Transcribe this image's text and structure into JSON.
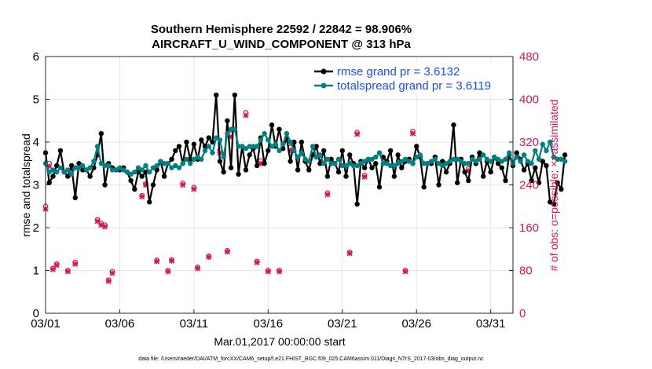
{
  "chart_data": {
    "type": "line",
    "title_line1": "Southern Hemisphere 22592 / 22842 = 98.906%",
    "title_line2": "AIRCRAFT_U_WIND_COMPONENT @ 313 hPa",
    "xlabel": "Mar.01,2017 00:00:00 start",
    "ylabel_left": "rmse and totalspread",
    "ylabel_right": "# of obs: o=possible; ×=assimilated",
    "footer": "data file: /Users/raeder/DAI/ATM_forcXX/CAM6_setup/f.e21.FHIST_BGC.f09_025.CAM6assim.011/Diags_NTrS_2017-03/obs_diag_output.nc",
    "xlim": [
      0,
      31.5
    ],
    "ylim_left": [
      0,
      6
    ],
    "ylim_right": [
      0,
      480
    ],
    "x_ticks": [
      {
        "x": 0,
        "label": "03/01"
      },
      {
        "x": 5,
        "label": "03/06"
      },
      {
        "x": 10,
        "label": "03/11"
      },
      {
        "x": 15,
        "label": "03/16"
      },
      {
        "x": 20,
        "label": "03/21"
      },
      {
        "x": 25,
        "label": "03/26"
      },
      {
        "x": 30,
        "label": "03/31"
      }
    ],
    "y_ticks_left": [
      "0",
      "1",
      "2",
      "3",
      "4",
      "5",
      "6"
    ],
    "y_ticks_right": [
      "0",
      "80",
      "160",
      "240",
      "320",
      "400",
      "480"
    ],
    "x_step": 0.25,
    "colors": {
      "rmse": "#000000",
      "totalspread": "#008080",
      "obs": "#d0185a",
      "legend_text": "#1f4fe0"
    },
    "series": [
      {
        "name": "rmse grand pr = 3.6132",
        "key": "rmse",
        "values": [
          3.75,
          3.05,
          3.2,
          3.45,
          3.8,
          3.3,
          3.2,
          3.45,
          2.7,
          3.5,
          3.35,
          3.35,
          3.2,
          3.4,
          3.7,
          4.2,
          3.0,
          3.5,
          3.4,
          3.35,
          3.35,
          3.4,
          3.3,
          3.1,
          2.9,
          3.3,
          3.2,
          3.3,
          2.6,
          3.0,
          3.35,
          3.55,
          3.2,
          3.5,
          3.6,
          3.8,
          3.9,
          3.5,
          4.0,
          3.6,
          3.95,
          3.6,
          4.05,
          3.9,
          4.1,
          4.0,
          5.1,
          3.55,
          3.3,
          4.5,
          3.4,
          5.1,
          3.25,
          3.9,
          3.35,
          3.7,
          3.85,
          3.45,
          4.1,
          3.5,
          3.8,
          4.4,
          3.9,
          4.3,
          3.85,
          4.1,
          3.55,
          4.0,
          3.35,
          4.0,
          3.55,
          3.35,
          3.7,
          3.9,
          3.5,
          3.8,
          3.2,
          3.6,
          3.5,
          3.3,
          3.8,
          3.2,
          3.7,
          3.5,
          2.55,
          3.55,
          3.4,
          3.6,
          3.4,
          3.5,
          2.95,
          3.65,
          3.55,
          3.8,
          3.2,
          3.7,
          3.4,
          3.55,
          3.6,
          3.5,
          3.9,
          3.65,
          2.95,
          3.5,
          3.5,
          3.65,
          3.0,
          3.55,
          3.3,
          3.5,
          4.4,
          3.05,
          3.6,
          3.3,
          3.1,
          3.65,
          3.5,
          3.75,
          3.2,
          3.55,
          3.3,
          3.65,
          3.5,
          3.4,
          3.1,
          3.7,
          3.45,
          3.75,
          3.6,
          3.35,
          3.5,
          3.1,
          3.4,
          3.05,
          3.55,
          3.45,
          2.6,
          2.55,
          3.05,
          2.9,
          3.7
        ]
      },
      {
        "name": "totalspread grand pr = 3.6119",
        "key": "totalspread",
        "values": [
          3.5,
          3.3,
          3.35,
          3.3,
          3.4,
          3.3,
          3.35,
          3.25,
          3.4,
          3.4,
          3.45,
          3.35,
          3.4,
          3.55,
          3.9,
          3.5,
          3.45,
          3.45,
          3.35,
          3.35,
          3.4,
          3.35,
          3.3,
          3.25,
          3.3,
          3.4,
          3.35,
          3.45,
          3.3,
          3.4,
          3.45,
          3.55,
          3.5,
          3.5,
          3.4,
          3.45,
          3.4,
          3.5,
          3.6,
          3.5,
          3.6,
          3.65,
          3.6,
          3.8,
          3.9,
          3.75,
          4.1,
          4.05,
          3.65,
          4.2,
          4.3,
          4.3,
          3.9,
          3.9,
          3.85,
          3.9,
          3.9,
          3.9,
          4.05,
          4.2,
          4.05,
          3.9,
          3.95,
          3.8,
          3.95,
          4.2,
          4.0,
          3.8,
          3.65,
          3.75,
          3.6,
          3.55,
          3.9,
          3.65,
          3.7,
          3.5,
          3.6,
          3.5,
          3.5,
          3.6,
          3.45,
          3.45,
          3.5,
          3.45,
          3.45,
          3.5,
          3.55,
          3.6,
          3.6,
          3.65,
          3.75,
          3.5,
          3.5,
          3.45,
          3.45,
          3.5,
          3.55,
          3.6,
          3.55,
          3.5,
          3.65,
          3.7,
          3.5,
          3.5,
          3.55,
          3.6,
          3.5,
          3.45,
          3.5,
          3.55,
          3.6,
          3.6,
          3.55,
          3.5,
          3.5,
          3.6,
          3.55,
          3.6,
          3.7,
          3.6,
          3.55,
          3.65,
          3.6,
          3.55,
          3.6,
          3.75,
          3.5,
          3.65,
          3.55,
          3.7,
          3.55,
          3.5,
          3.8,
          3.6,
          3.95,
          3.8,
          4.0,
          3.65,
          3.6,
          3.6,
          3.55
        ]
      },
      {
        "name": "obs possible",
        "key": "obs_possible",
        "axis": "right",
        "values": [
          200,
          280,
          84,
          92,
          null,
          null,
          80,
          null,
          95,
          null,
          null,
          null,
          null,
          null,
          175,
          168,
          165,
          62,
          78,
          null,
          null,
          null,
          null,
          null,
          null,
          null,
          220,
          242,
          null,
          null,
          99,
          null,
          null,
          80,
          100,
          null,
          null,
          243,
          null,
          null,
          235,
          86,
          null,
          null,
          107,
          null,
          null,
          305,
          null,
          117,
          335,
          null,
          null,
          null,
          375,
          null,
          null,
          97,
          285,
          null,
          80,
          null,
          null,
          80,
          null,
          null,
          310,
          null,
          null,
          302,
          null,
          null,
          null,
          null,
          null,
          null,
          225,
          null,
          null,
          null,
          null,
          null,
          114,
          null,
          338,
          null,
          258,
          null,
          null,
          null,
          null,
          null,
          null,
          null,
          null,
          null,
          null,
          80,
          null,
          340,
          null,
          null,
          null,
          null,
          null,
          null,
          null,
          null,
          null,
          null,
          null,
          null,
          null,
          null,
          270,
          null,
          null,
          null,
          null,
          null,
          null,
          null,
          null,
          null,
          null,
          null,
          null,
          null,
          null,
          null,
          null,
          null,
          null,
          null,
          null,
          null,
          null,
          null,
          null,
          null,
          null,
          null,
          null
        ]
      },
      {
        "name": "obs assimilated",
        "key": "obs_assim",
        "axis": "right",
        "values": [
          195,
          275,
          82,
          90,
          null,
          null,
          78,
          null,
          92,
          null,
          null,
          null,
          null,
          null,
          172,
          165,
          162,
          60,
          75,
          null,
          null,
          null,
          null,
          null,
          null,
          null,
          218,
          240,
          null,
          null,
          97,
          null,
          null,
          78,
          98,
          null,
          null,
          240,
          null,
          null,
          232,
          84,
          null,
          null,
          105,
          null,
          null,
          300,
          null,
          115,
          330,
          null,
          null,
          null,
          370,
          null,
          null,
          95,
          280,
          null,
          78,
          null,
          null,
          78,
          null,
          null,
          305,
          null,
          null,
          298,
          null,
          null,
          null,
          null,
          null,
          null,
          222,
          null,
          null,
          null,
          null,
          null,
          112,
          null,
          335,
          null,
          255,
          null,
          null,
          null,
          null,
          null,
          null,
          null,
          null,
          null,
          null,
          78,
          null,
          336,
          null,
          null,
          null,
          null,
          null,
          null,
          null,
          null,
          null,
          null,
          null,
          null,
          null,
          null,
          266,
          null,
          null,
          null,
          null,
          null,
          null,
          null,
          null,
          null,
          null,
          null,
          null,
          null,
          null,
          null,
          null,
          null,
          null,
          null,
          null,
          null,
          null,
          null,
          null,
          null,
          null,
          null,
          null
        ]
      }
    ]
  }
}
